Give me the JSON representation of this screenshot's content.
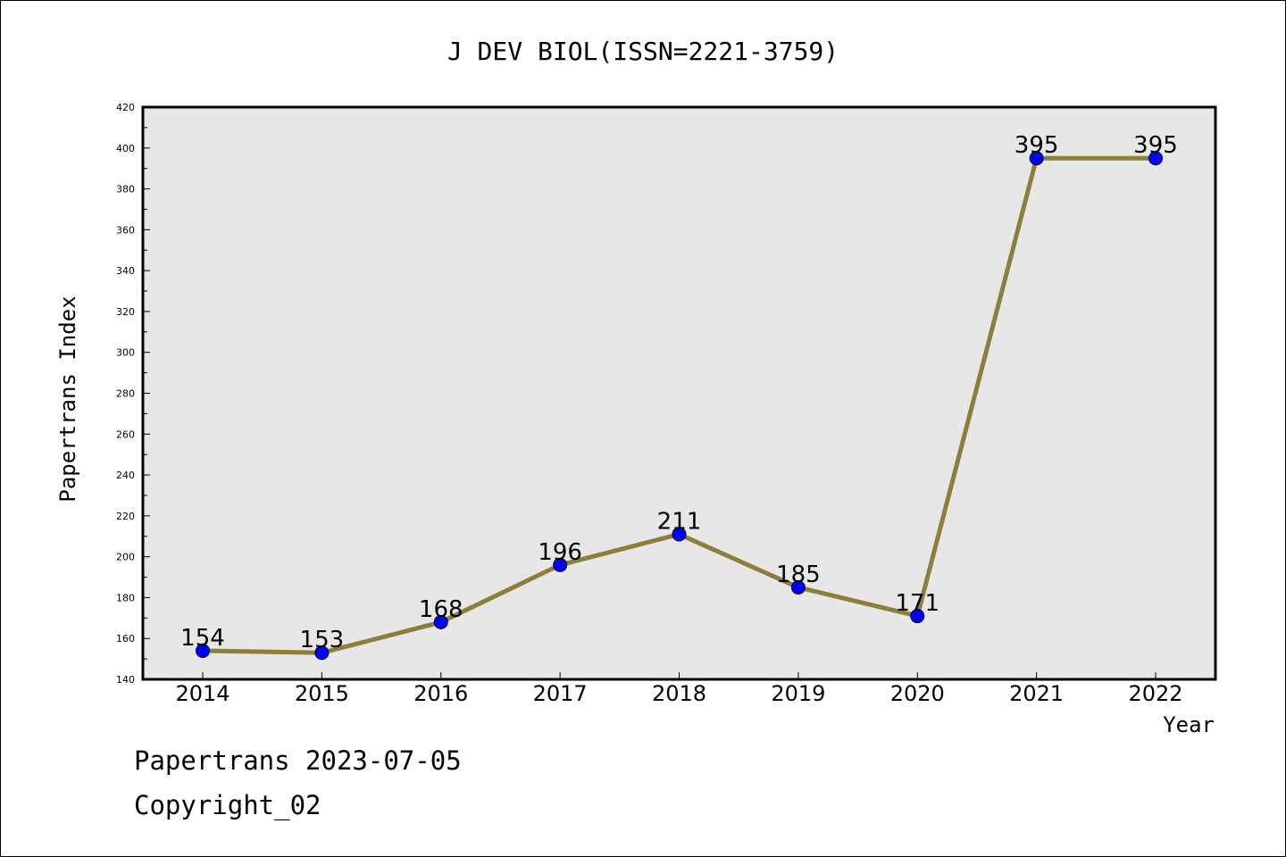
{
  "chart_data": {
    "type": "line",
    "title": "J DEV BIOL(ISSN=2221-3759)",
    "xlabel": "Year",
    "ylabel": "Papertrans Index",
    "categories": [
      "2014",
      "2015",
      "2016",
      "2017",
      "2018",
      "2019",
      "2020",
      "2021",
      "2022"
    ],
    "values": [
      154,
      153,
      168,
      196,
      211,
      185,
      171,
      395,
      395
    ],
    "data_labels": [
      "154",
      "153",
      "168",
      "196",
      "211",
      "185",
      "171",
      "395",
      "395"
    ],
    "ylim": [
      140,
      420
    ],
    "yticks": [
      "140",
      "160",
      "180",
      "200",
      "220",
      "240",
      "260",
      "280",
      "300",
      "320",
      "340",
      "360",
      "380",
      "400",
      "420"
    ],
    "grid": false,
    "colors": {
      "plot_background": "#e7e7e7",
      "line": "#8c7f3a",
      "marker": "#0000ff"
    }
  },
  "footer": {
    "line1": "Papertrans 2023-07-05",
    "line2": "Copyright_02"
  }
}
